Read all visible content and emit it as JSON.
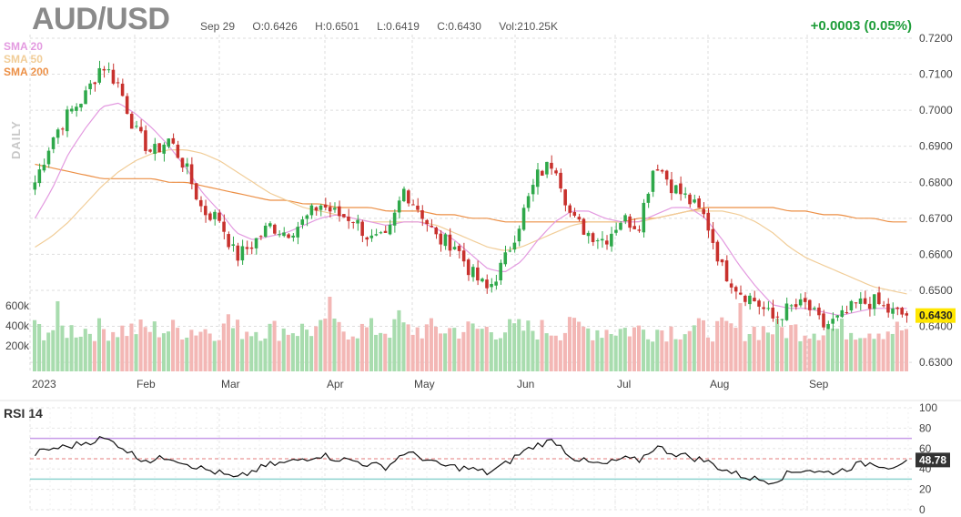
{
  "header": {
    "symbol": "AUD/USD",
    "date": "Sep 29",
    "open": "O:0.6426",
    "high": "H:0.6501",
    "low": "L:0.6419",
    "close": "C:0.6430",
    "volume": "Vol:210.25K",
    "change": "+0.0003 (0.05%)"
  },
  "labels": {
    "timeframe": "DAILY",
    "sma20": "SMA 20",
    "sma50": "SMA 50",
    "sma200": "SMA 200",
    "rsi_title": "RSI 14",
    "last_price": "0.6430",
    "last_rsi": "48.78"
  },
  "colors": {
    "up": "#2ea84a",
    "down": "#c8312d",
    "sma20": "#e39ae0",
    "sma50": "#f1cd98",
    "sma200": "#ec8f45",
    "rsi_line": "#111111",
    "rsi_upper": "#c79be8",
    "rsi_lower": "#8fd3d0",
    "rsi_mid": "#e57c7c",
    "price_tag": "#ffe600",
    "rsi_tag": "#333333"
  },
  "chart_data": [
    {
      "type": "candlestick",
      "title": "AUD/USD",
      "x_months": [
        "2023",
        "Feb",
        "Mar",
        "Apr",
        "May",
        "Jun",
        "Jul",
        "Aug",
        "Sep"
      ],
      "y_ticks": [
        "0.7200",
        "0.7100",
        "0.7000",
        "0.6900",
        "0.6800",
        "0.6700",
        "0.6600",
        "0.6500",
        "0.6400",
        "0.6300"
      ],
      "ylim": [
        0.627,
        0.721
      ],
      "volume_ticks": [
        "600k",
        "400k",
        "200k"
      ],
      "volume_max": 800000,
      "close_series_weekly": [
        0.68,
        0.692,
        0.699,
        0.704,
        0.713,
        0.707,
        0.694,
        0.688,
        0.692,
        0.684,
        0.672,
        0.67,
        0.659,
        0.663,
        0.668,
        0.666,
        0.669,
        0.674,
        0.671,
        0.67,
        0.664,
        0.664,
        0.678,
        0.672,
        0.664,
        0.663,
        0.655,
        0.65,
        0.658,
        0.67,
        0.682,
        0.686,
        0.67,
        0.666,
        0.664,
        0.67,
        0.668,
        0.686,
        0.679,
        0.675,
        0.67,
        0.656,
        0.65,
        0.647,
        0.642,
        0.645,
        0.646,
        0.64,
        0.642,
        0.646,
        0.647,
        0.644,
        0.643
      ],
      "last_close": 0.643,
      "sma20_weekly": [
        0.67,
        0.678,
        0.688,
        0.695,
        0.701,
        0.702,
        0.699,
        0.695,
        0.69,
        0.684,
        0.677,
        0.672,
        0.666,
        0.664,
        0.665,
        0.666,
        0.668,
        0.67,
        0.671,
        0.67,
        0.669,
        0.668,
        0.669,
        0.669,
        0.667,
        0.664,
        0.66,
        0.656,
        0.655,
        0.658,
        0.664,
        0.669,
        0.672,
        0.672,
        0.67,
        0.669,
        0.669,
        0.671,
        0.673,
        0.673,
        0.67,
        0.664,
        0.657,
        0.651,
        0.646,
        0.645,
        0.645,
        0.644,
        0.643,
        0.644,
        0.645,
        0.645,
        0.645
      ],
      "sma50_weekly": [
        0.662,
        0.665,
        0.669,
        0.674,
        0.679,
        0.683,
        0.686,
        0.688,
        0.689,
        0.689,
        0.688,
        0.686,
        0.683,
        0.68,
        0.677,
        0.675,
        0.673,
        0.672,
        0.671,
        0.67,
        0.669,
        0.669,
        0.669,
        0.669,
        0.668,
        0.666,
        0.664,
        0.662,
        0.661,
        0.662,
        0.664,
        0.666,
        0.668,
        0.669,
        0.669,
        0.669,
        0.669,
        0.67,
        0.671,
        0.672,
        0.672,
        0.672,
        0.671,
        0.669,
        0.666,
        0.662,
        0.659,
        0.657,
        0.655,
        0.653,
        0.651,
        0.65,
        0.649
      ],
      "sma200_weekly": [
        0.685,
        0.684,
        0.683,
        0.682,
        0.681,
        0.681,
        0.681,
        0.681,
        0.68,
        0.68,
        0.679,
        0.678,
        0.677,
        0.676,
        0.675,
        0.675,
        0.674,
        0.674,
        0.673,
        0.673,
        0.673,
        0.672,
        0.672,
        0.672,
        0.671,
        0.671,
        0.67,
        0.67,
        0.669,
        0.669,
        0.669,
        0.669,
        0.669,
        0.669,
        0.669,
        0.669,
        0.67,
        0.67,
        0.671,
        0.672,
        0.673,
        0.673,
        0.673,
        0.673,
        0.673,
        0.672,
        0.672,
        0.671,
        0.671,
        0.67,
        0.67,
        0.669,
        0.669
      ]
    },
    {
      "type": "line",
      "title": "RSI 14",
      "y_ticks": [
        "100",
        "80",
        "60",
        "40",
        "20",
        "0"
      ],
      "ylim": [
        0,
        100
      ],
      "upper_level": 70,
      "lower_level": 30,
      "last_value": 48.78,
      "rsi_weekly": [
        55,
        60,
        62,
        66,
        70,
        64,
        52,
        48,
        52,
        46,
        40,
        36,
        30,
        38,
        44,
        46,
        50,
        54,
        50,
        48,
        44,
        42,
        56,
        52,
        44,
        42,
        40,
        36,
        44,
        56,
        64,
        68,
        52,
        46,
        44,
        50,
        48,
        62,
        56,
        52,
        48,
        40,
        34,
        30,
        28,
        36,
        40,
        36,
        38,
        44,
        46,
        42,
        48.78
      ]
    }
  ]
}
